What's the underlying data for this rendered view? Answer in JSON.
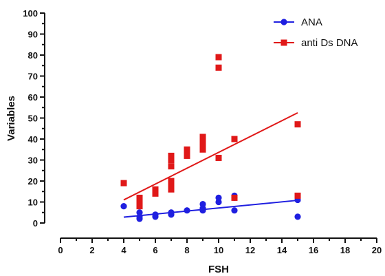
{
  "chart_data": {
    "type": "scatter",
    "title": "",
    "xlabel": "FSH",
    "ylabel": "Variables",
    "xlim": [
      0,
      20
    ],
    "ylim": [
      0,
      100
    ],
    "x_ticks": [
      "0",
      "2",
      "4",
      "6",
      "8",
      "10",
      "12",
      "14",
      "16",
      "18",
      "20"
    ],
    "y_ticks": [
      "0",
      "10",
      "20",
      "30",
      "40",
      "50",
      "60",
      "70",
      "80",
      "90",
      "100"
    ],
    "legend_position": "top-right",
    "grid": false,
    "series": [
      {
        "name": "ANA",
        "marker": "circle",
        "color": "#1f1fe0",
        "points": [
          [
            4,
            8
          ],
          [
            5,
            2
          ],
          [
            5,
            3
          ],
          [
            5,
            5
          ],
          [
            6,
            3
          ],
          [
            6,
            4
          ],
          [
            7,
            4
          ],
          [
            7,
            5
          ],
          [
            8,
            6
          ],
          [
            9,
            6
          ],
          [
            9,
            7
          ],
          [
            9,
            9
          ],
          [
            10,
            10
          ],
          [
            10,
            12
          ],
          [
            11,
            6
          ],
          [
            11,
            12
          ],
          [
            11,
            13
          ],
          [
            15,
            11
          ],
          [
            15,
            3
          ]
        ],
        "trend": {
          "x": [
            4,
            15
          ],
          "y": [
            2.8,
            10.8
          ]
        }
      },
      {
        "name": "anti Ds DNA",
        "marker": "square",
        "color": "#e01818",
        "points": [
          [
            4,
            19
          ],
          [
            5,
            8
          ],
          [
            5,
            10
          ],
          [
            5,
            12
          ],
          [
            6,
            14
          ],
          [
            6,
            16
          ],
          [
            7,
            16
          ],
          [
            7,
            18
          ],
          [
            7,
            20
          ],
          [
            7,
            27
          ],
          [
            7,
            30
          ],
          [
            7,
            32
          ],
          [
            8,
            32
          ],
          [
            8,
            34
          ],
          [
            8,
            35
          ],
          [
            9,
            35
          ],
          [
            9,
            37
          ],
          [
            9,
            39
          ],
          [
            9,
            41
          ],
          [
            10,
            31
          ],
          [
            10,
            74
          ],
          [
            10,
            79
          ],
          [
            11,
            12
          ],
          [
            11,
            40
          ],
          [
            15,
            47
          ],
          [
            15,
            13
          ]
        ],
        "trend": {
          "x": [
            4,
            15
          ],
          "y": [
            11,
            52.5
          ]
        }
      }
    ]
  }
}
